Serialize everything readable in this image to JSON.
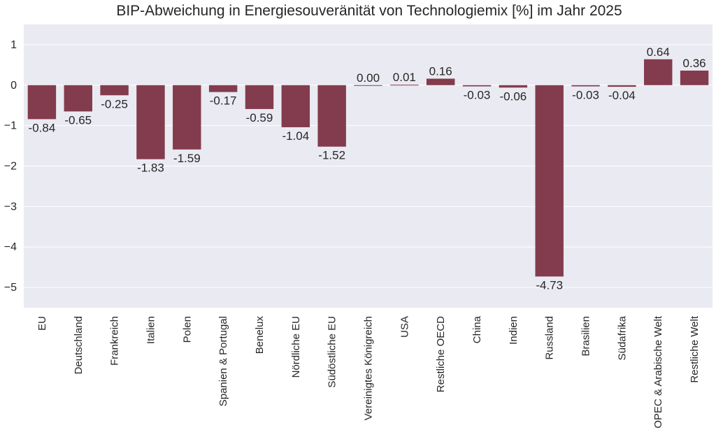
{
  "chart_data": {
    "type": "bar",
    "title": "BIP-Abweichung in Energiesouveränität von Technologiemix [%] im Jahr 2025",
    "xlabel": "",
    "ylabel": "",
    "categories": [
      "EU",
      "Deutschland",
      "Frankreich",
      "Italien",
      "Polen",
      "Spanien & Portugal",
      "Benelux",
      "Nördliche EU",
      "Südöstliche EU",
      "Vereinigtes Königreich",
      "USA",
      "Restliche OECD",
      "China",
      "Indien",
      "Russland",
      "Brasilien",
      "Südafrika",
      "OPEC & Arabische Welt",
      "Restliche Welt"
    ],
    "values": [
      -0.84,
      -0.65,
      -0.25,
      -1.83,
      -1.59,
      -0.17,
      -0.59,
      -1.04,
      -1.52,
      0.0,
      0.01,
      0.16,
      -0.03,
      -0.06,
      -4.73,
      -0.03,
      -0.04,
      0.64,
      0.36
    ],
    "value_labels": [
      "-0.84",
      "-0.65",
      "-0.25",
      "-1.83",
      "-1.59",
      "-0.17",
      "-0.59",
      "-1.04",
      "-1.52",
      "0.00",
      "0.01",
      "0.16",
      "-0.03",
      "-0.06",
      "-4.73",
      "-0.03",
      "-0.04",
      "0.64",
      "0.36"
    ],
    "yticks": [
      1,
      0,
      -1,
      -2,
      -3,
      -4,
      -5
    ],
    "ytick_labels": [
      "1",
      "0",
      "−1",
      "−2",
      "−3",
      "−4",
      "−5"
    ],
    "ylim": [
      -5.5,
      1.5
    ],
    "grid": true,
    "colors": {
      "bar": "#833c4d",
      "plot_background": "#eaeaf2",
      "grid": "#ffffff",
      "text": "#262626"
    }
  }
}
